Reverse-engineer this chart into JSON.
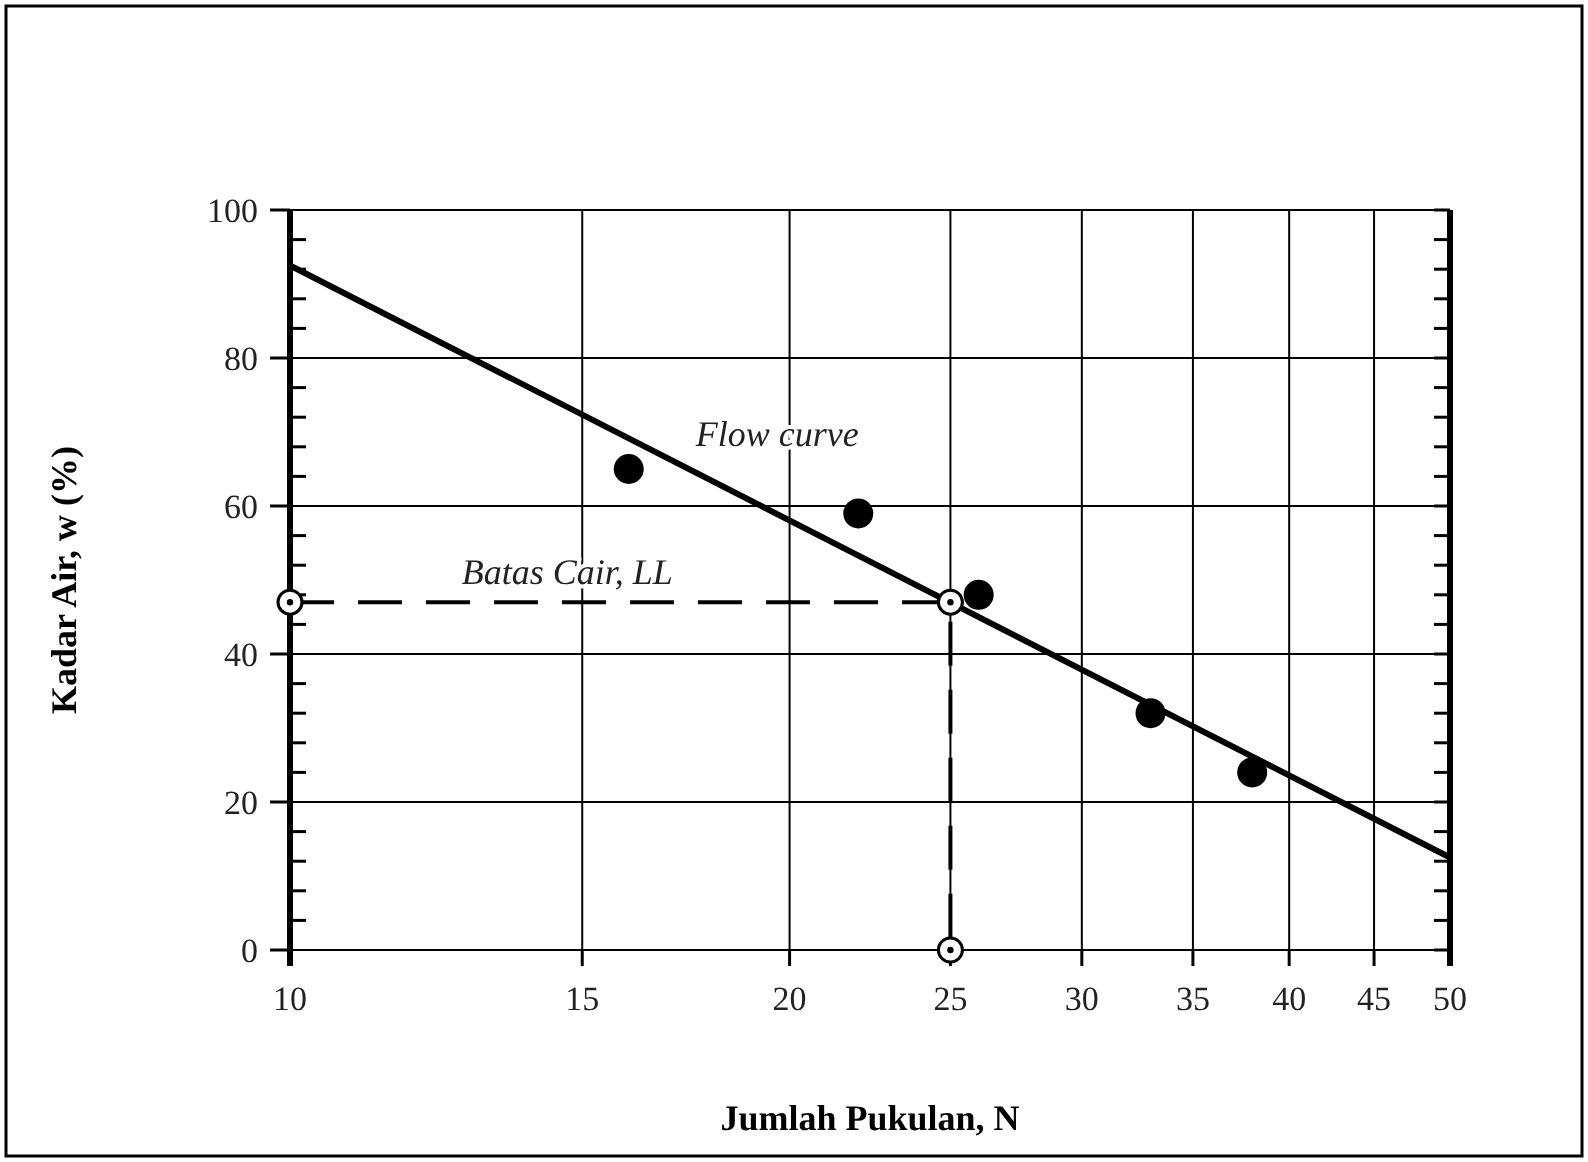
{
  "chart_data": {
    "type": "scatter",
    "xlabel": "Jumlah Pukulan, N",
    "ylabel": "Kadar Air, w (%)",
    "log": "x",
    "xlim": [
      10,
      50
    ],
    "xticks": [
      10,
      15,
      20,
      25,
      30,
      35,
      40,
      45,
      50
    ],
    "ylim": [
      0,
      100
    ],
    "yticks": [
      0,
      {
        "value": 4,
        "label": null
      },
      {
        "value": 8,
        "label": null
      },
      {
        "value": 12,
        "label": null
      },
      {
        "value": 16,
        "label": null
      },
      20,
      {
        "value": 24,
        "label": null
      },
      {
        "value": 28,
        "label": null
      },
      {
        "value": 32,
        "label": null
      },
      {
        "value": 36,
        "label": null
      },
      40,
      {
        "value": 44,
        "label": null
      },
      {
        "value": 48,
        "label": null
      },
      {
        "value": 52,
        "label": null
      },
      {
        "value": 56,
        "label": null
      },
      60,
      {
        "value": 64,
        "label": null
      },
      {
        "value": 68,
        "label": null
      },
      {
        "value": 72,
        "label": null
      },
      {
        "value": 76,
        "label": null
      },
      80,
      {
        "value": 84,
        "label": null
      },
      {
        "value": 88,
        "label": null
      },
      {
        "value": 92,
        "label": null
      },
      {
        "value": 96,
        "label": null
      },
      100
    ],
    "grid": true,
    "series": [
      {
        "color": "#000000",
        "marker": "circle",
        "x": [
          16,
          22,
          26,
          33,
          38
        ],
        "values": [
          65,
          59,
          48,
          32,
          24
        ]
      },
      {
        "type": "line",
        "name": "Flow curve",
        "color": "#000000",
        "line_style": "solid",
        "marker": "none",
        "x": [
          10,
          50
        ],
        "values": [
          92.5,
          12.5
        ]
      },
      {
        "type": "line",
        "name": "Batas Cair, LL",
        "color": "#000000",
        "line_style": "dashed",
        "marker": "circle",
        "x": [
          10,
          25,
          25
        ],
        "values": [
          47,
          47,
          0
        ]
      }
    ]
  }
}
